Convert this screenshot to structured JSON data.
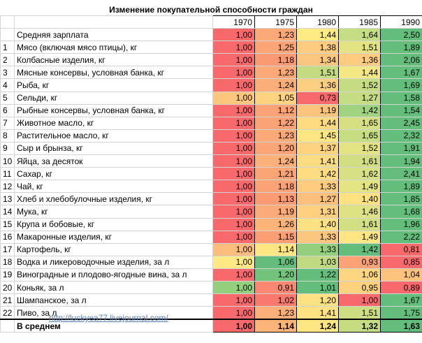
{
  "title": "Изменение покупательной способности граждан",
  "years": [
    "1970",
    "1975",
    "1980",
    "1985",
    "1990"
  ],
  "rows": [
    {
      "num": "",
      "label": "Средняя зарплата",
      "values": [
        "1,00",
        "1,23",
        "1,44",
        "1,64",
        "2,50"
      ],
      "colors": [
        "#f8696b",
        "#fbaa77",
        "#ffeb84",
        "#c5dd83",
        "#63be7b"
      ]
    },
    {
      "num": "1",
      "label": "Мясо (включая мясо птицы), кг",
      "values": [
        "1,00",
        "1,25",
        "1,38",
        "1,51",
        "1,89"
      ],
      "colors": [
        "#f8696b",
        "#fba476",
        "#fecc7f",
        "#e3e383",
        "#63be7b"
      ]
    },
    {
      "num": "2",
      "label": "Колбасные изделия, кг",
      "values": [
        "1,00",
        "1,18",
        "1,34",
        "1,36",
        "2,06"
      ],
      "colors": [
        "#f8696b",
        "#fa9a74",
        "#fdc67e",
        "#fecb7f",
        "#63be7b"
      ]
    },
    {
      "num": "3",
      "label": "Мясные консервы, условная банка, кг",
      "values": [
        "1,00",
        "1,23",
        "1,51",
        "1,44",
        "1,67"
      ],
      "colors": [
        "#f8696b",
        "#fba976",
        "#c3dc82",
        "#f3e884",
        "#63be7b"
      ]
    },
    {
      "num": "4",
      "label": "Рыба, кг",
      "values": [
        "1,00",
        "1,24",
        "1,36",
        "1,52",
        "1,69"
      ],
      "colors": [
        "#f8696b",
        "#fcae78",
        "#fecf80",
        "#c5dc82",
        "#63be7b"
      ]
    },
    {
      "num": "5",
      "label": "Сельди, кг",
      "values": [
        "1,00",
        "1,05",
        "0,73",
        "1,27",
        "1,58"
      ],
      "colors": [
        "#fdc67d",
        "#fed380",
        "#f8696b",
        "#c6dc82",
        "#63be7b"
      ]
    },
    {
      "num": "6",
      "label": "Рыбные консервы, условная банка, кг",
      "values": [
        "1,00",
        "1,12",
        "1,19",
        "1,42",
        "1,54"
      ],
      "colors": [
        "#f8696b",
        "#fba276",
        "#fdc47e",
        "#a0d37f",
        "#63be7b"
      ]
    },
    {
      "num": "7",
      "label": "Животное масло, кг",
      "values": [
        "1,00",
        "1,22",
        "1,44",
        "1,65",
        "2,45"
      ],
      "colors": [
        "#f8696b",
        "#fba276",
        "#fedb81",
        "#d6e083",
        "#63be7b"
      ]
    },
    {
      "num": "8",
      "label": "Растительное масло, кг",
      "values": [
        "1,00",
        "1,23",
        "1,45",
        "1,65",
        "2,32"
      ],
      "colors": [
        "#f8696b",
        "#fba976",
        "#fee782",
        "#c7dd82",
        "#63be7b"
      ]
    },
    {
      "num": "9",
      "label": "Сыр и брынза, кг",
      "values": [
        "1,00",
        "1,20",
        "1,37",
        "1,52",
        "1,91"
      ],
      "colors": [
        "#f8696b",
        "#fba476",
        "#fed380",
        "#e3e383",
        "#63be7b"
      ]
    },
    {
      "num": "10",
      "label": "Яйца, за десяток",
      "values": [
        "1,00",
        "1,24",
        "1,41",
        "1,61",
        "1,94"
      ],
      "colors": [
        "#f8696b",
        "#fcb079",
        "#fedc81",
        "#d1df82",
        "#63be7b"
      ]
    },
    {
      "num": "11",
      "label": "Сахар, кг",
      "values": [
        "1,00",
        "1,21",
        "1,42",
        "1,62",
        "2,41"
      ],
      "colors": [
        "#f8696b",
        "#fba476",
        "#fedd82",
        "#d7e082",
        "#63be7b"
      ]
    },
    {
      "num": "12",
      "label": "Чай, кг",
      "values": [
        "1,00",
        "1,18",
        "1,33",
        "1,49",
        "1,89"
      ],
      "colors": [
        "#f8696b",
        "#fba276",
        "#fecb7f",
        "#e5e483",
        "#63be7b"
      ]
    },
    {
      "num": "13",
      "label": "Хлеб и хлебобулочные изделия, кг",
      "values": [
        "1,00",
        "1,13",
        "1,27",
        "1,40",
        "1,85"
      ],
      "colors": [
        "#f8696b",
        "#fa9b74",
        "#fdbf7c",
        "#fee282",
        "#63be7b"
      ]
    },
    {
      "num": "14",
      "label": "Мука, кг",
      "values": [
        "1,00",
        "1,19",
        "1,31",
        "1,46",
        "1,68"
      ],
      "colors": [
        "#f8696b",
        "#fbab77",
        "#fed07f",
        "#dfe283",
        "#63be7b"
      ]
    },
    {
      "num": "15",
      "label": "Крупа и бобовые, кг",
      "values": [
        "1,00",
        "1,26",
        "1,40",
        "1,61",
        "1,96"
      ],
      "colors": [
        "#f8696b",
        "#fcb479",
        "#fee182",
        "#d2df82",
        "#63be7b"
      ]
    },
    {
      "num": "16",
      "label": "Макаронные изделия, кг",
      "values": [
        "1,00",
        "1,15",
        "1,33",
        "1,49",
        "2,22"
      ],
      "colors": [
        "#f8696b",
        "#fa9e75",
        "#fdc67e",
        "#fee783",
        "#63be7b"
      ]
    },
    {
      "num": "17",
      "label": "Картофель, кг",
      "values": [
        "1,00",
        "1,14",
        "1,33",
        "1,42",
        "0,81"
      ],
      "colors": [
        "#fdbd7c",
        "#fee683",
        "#94cf7e",
        "#63be7b",
        "#f8696b"
      ]
    },
    {
      "num": "18",
      "label": "Водка и ликероводочные изделия, за л",
      "values": [
        "1,00",
        "1,06",
        "1,03",
        "0,93",
        "0,85"
      ],
      "colors": [
        "#ffe984",
        "#63be7b",
        "#c0da81",
        "#fba276",
        "#f8696b"
      ]
    },
    {
      "num": "19",
      "label": "Виноградные и плодово-ягодные вина, за л",
      "values": [
        "1,00",
        "1,20",
        "1,22",
        "1,06",
        "1,04"
      ],
      "colors": [
        "#f8696b",
        "#73c37c",
        "#63be7b",
        "#fed580",
        "#fdc37d"
      ]
    },
    {
      "num": "20",
      "label": "Коньяк, за л",
      "values": [
        "1,00",
        "0,91",
        "1,01",
        "0,95",
        "0,89"
      ],
      "colors": [
        "#94cf7e",
        "#fa8872",
        "#63be7b",
        "#fdd27f",
        "#f8696b"
      ]
    },
    {
      "num": "21",
      "label": "Шампанское, за л",
      "values": [
        "1,00",
        "1,02",
        "1,20",
        "1,00",
        "1,67"
      ],
      "colors": [
        "#f8696b",
        "#f9796f",
        "#fee182",
        "#f8696b",
        "#63be7b"
      ]
    },
    {
      "num": "22",
      "label": "Пиво, за л",
      "values": [
        "1,00",
        "1,23",
        "1,41",
        "1,51",
        "1,75"
      ],
      "colors": [
        "#f8696b",
        "#fcaf78",
        "#fee282",
        "#ccdd82",
        "#63be7b"
      ]
    }
  ],
  "total": {
    "label": "В среднем",
    "values": [
      "1,00",
      "1,14",
      "1,24",
      "1,32",
      "1,63"
    ],
    "colors": [
      "#f8696b",
      "#fcb479",
      "#fee683",
      "#c5dc82",
      "#63be7b"
    ]
  },
  "link_text": "http://luckyea77.livejournal.com/"
}
